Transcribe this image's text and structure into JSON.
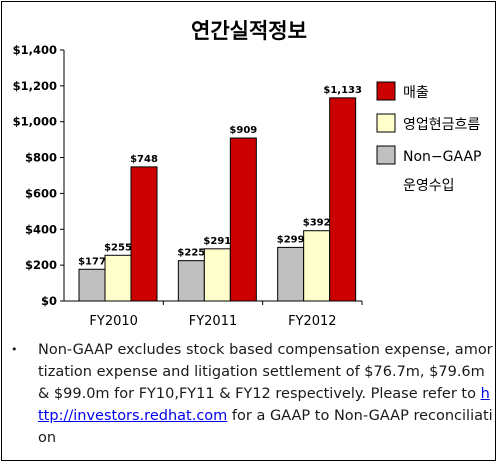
{
  "chart_data": {
    "type": "bar",
    "title": "연간실적정보",
    "categories": [
      "FY2010",
      "FY2011",
      "FY2012"
    ],
    "series": [
      {
        "name": "Non-GAAP 운영수입",
        "color": "#c0c0c0",
        "values": [
          177,
          225,
          299
        ],
        "labels": [
          "$177",
          "$225",
          "$299"
        ]
      },
      {
        "name": "영업현금흐름",
        "color": "#ffffcc",
        "values": [
          255,
          291,
          392
        ],
        "labels": [
          "$255",
          "$291",
          "$392"
        ]
      },
      {
        "name": "매출",
        "color": "#cc0000",
        "values": [
          748,
          909,
          1133
        ],
        "labels": [
          "$748",
          "$909",
          "$1,133"
        ]
      }
    ],
    "yticks": [
      "$0",
      "$200",
      "$400",
      "$600",
      "$800",
      "$1,000",
      "$1,200",
      "$1,400"
    ],
    "ylim": [
      0,
      1400
    ],
    "grid": false,
    "legend": {
      "placement": "right",
      "entries": [
        {
          "label": "매출",
          "color": "#cc0000"
        },
        {
          "label": "영업현금흐름",
          "color": "#ffffcc"
        },
        {
          "label": "Non−GAAP",
          "label2": "운영수입",
          "color": "#c0c0c0"
        }
      ]
    }
  },
  "footnote": {
    "bullet": "•",
    "text_before": "Non-GAAP excludes stock based compensation expense, amortization expense and litigation settlement of  $76.7m, $79.6m & $99.0m for FY10,FY11 & FY12 respectively. Please refer to ",
    "link": "http://investors.redhat.com",
    "text_after": " for a GAAP to Non-GAAP reconciliation"
  }
}
